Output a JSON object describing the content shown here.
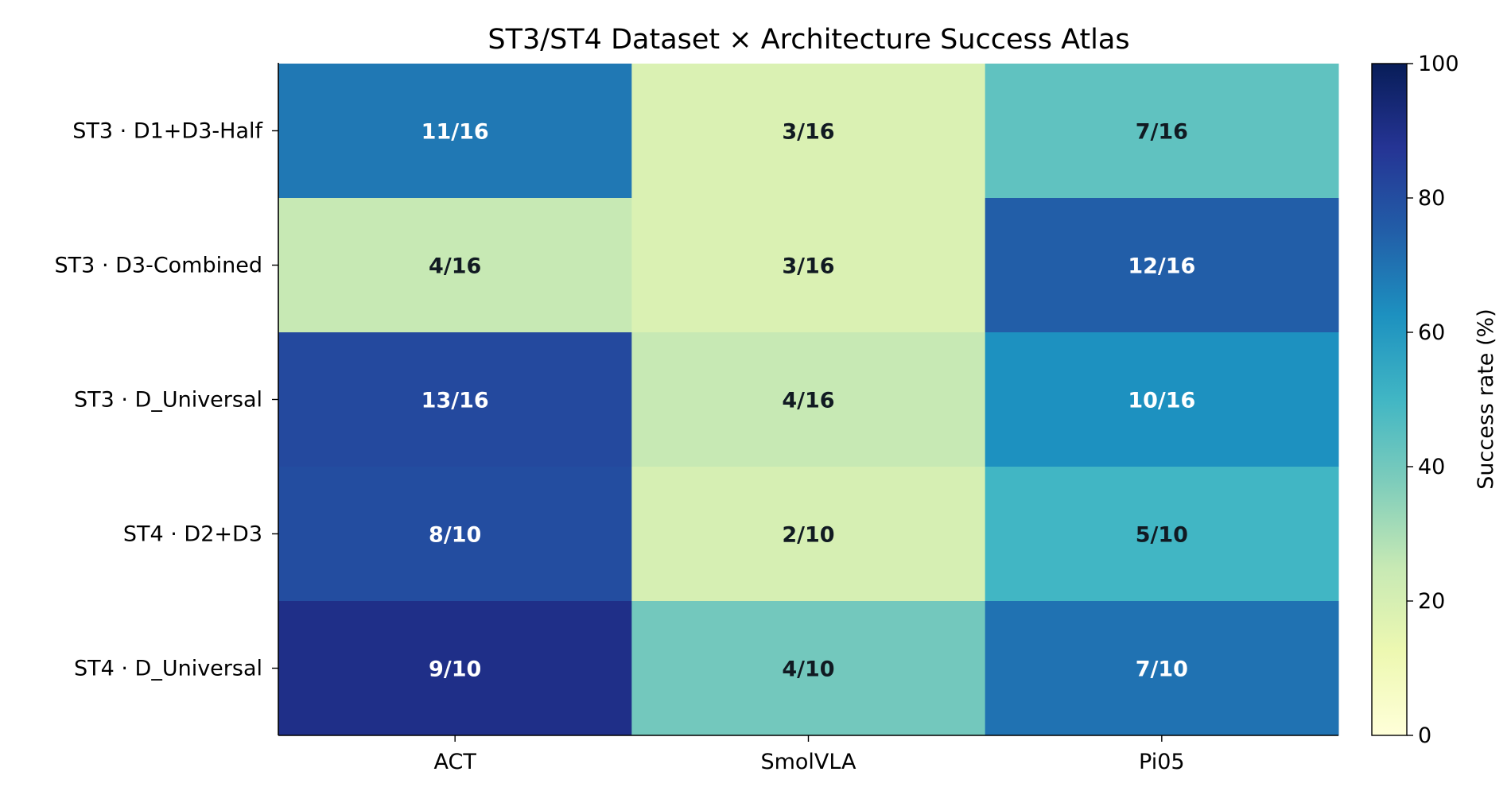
{
  "chart_data": {
    "type": "heatmap",
    "title": "ST3/ST4 Dataset × Architecture Success Atlas",
    "xlabel": "",
    "ylabel": "",
    "columns": [
      "ACT",
      "SmolVLA",
      "Pi05"
    ],
    "rows": [
      "ST3 · D1+D3-Half",
      "ST3 · D3-Combined",
      "ST3 · D_Universal",
      "ST4 · D2+D3",
      "ST4 · D_Universal"
    ],
    "cells": [
      [
        {
          "label": "11/16",
          "value": 68.75
        },
        {
          "label": "3/16",
          "value": 18.75
        },
        {
          "label": "7/16",
          "value": 43.75
        }
      ],
      [
        {
          "label": "4/16",
          "value": 25.0
        },
        {
          "label": "3/16",
          "value": 18.75
        },
        {
          "label": "12/16",
          "value": 75.0
        }
      ],
      [
        {
          "label": "13/16",
          "value": 81.25
        },
        {
          "label": "4/16",
          "value": 25.0
        },
        {
          "label": "10/16",
          "value": 62.5
        }
      ],
      [
        {
          "label": "8/10",
          "value": 80.0
        },
        {
          "label": "2/10",
          "value": 20.0
        },
        {
          "label": "5/10",
          "value": 50.0
        }
      ],
      [
        {
          "label": "9/10",
          "value": 90.0
        },
        {
          "label": "4/10",
          "value": 40.0
        },
        {
          "label": "7/10",
          "value": 70.0
        }
      ]
    ],
    "colorbar": {
      "label": "Success rate (%)",
      "range": [
        0,
        100
      ],
      "ticks": [
        "0",
        "20",
        "40",
        "60",
        "80",
        "100"
      ],
      "colormap": "YlGnBu"
    },
    "grid": false
  }
}
